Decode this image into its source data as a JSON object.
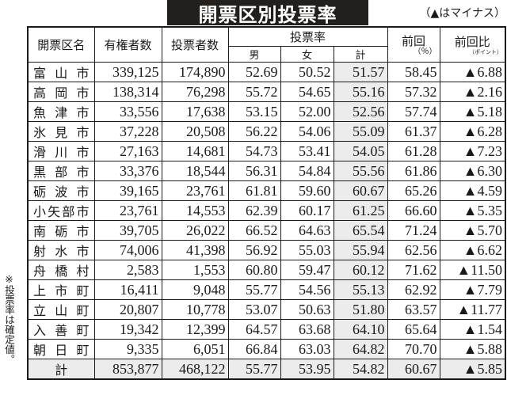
{
  "title": "開票区別投票率",
  "note": "（▲はマイナス）",
  "side_note": "※投票率は確定値。",
  "headers": {
    "district": "開票区名",
    "registered": "有権者数",
    "voters": "投票者数",
    "turnout": "投票率",
    "male": "男",
    "female": "女",
    "total": "計",
    "previous": "前回",
    "previous_unit": "（％）",
    "change": "前回比",
    "change_unit": "（ポイント）"
  },
  "rows": [
    [
      "富山市",
      "339,125",
      "174,890",
      "52.69",
      "50.52",
      "51.57",
      "58.45",
      "▲6.88"
    ],
    [
      "高岡市",
      "138,314",
      "76,298",
      "55.72",
      "54.65",
      "55.16",
      "57.32",
      "▲2.16"
    ],
    [
      "魚津市",
      "33,556",
      "17,638",
      "53.15",
      "52.00",
      "52.56",
      "57.74",
      "▲5.18"
    ],
    [
      "氷見市",
      "37,228",
      "20,508",
      "56.22",
      "54.06",
      "55.09",
      "61.37",
      "▲6.28"
    ],
    [
      "滑川市",
      "27,163",
      "14,681",
      "54.73",
      "53.41",
      "54.05",
      "61.28",
      "▲7.23"
    ],
    [
      "黒部市",
      "33,376",
      "18,544",
      "56.31",
      "54.84",
      "55.56",
      "61.86",
      "▲6.30"
    ],
    [
      "砺波市",
      "39,165",
      "23,761",
      "61.81",
      "59.60",
      "60.67",
      "65.26",
      "▲4.59"
    ],
    [
      "小矢部市",
      "23,761",
      "14,553",
      "62.39",
      "60.17",
      "61.25",
      "66.60",
      "▲5.35"
    ],
    [
      "南砺市",
      "39,705",
      "26,022",
      "66.52",
      "64.63",
      "65.54",
      "71.24",
      "▲5.70"
    ],
    [
      "射水市",
      "74,006",
      "41,398",
      "56.92",
      "55.03",
      "55.94",
      "62.56",
      "▲6.62"
    ],
    [
      "舟橋村",
      "2,583",
      "1,553",
      "60.80",
      "59.47",
      "60.12",
      "71.62",
      "▲11.50"
    ],
    [
      "上市町",
      "16,411",
      "9,048",
      "55.77",
      "54.56",
      "55.13",
      "62.92",
      "▲7.79"
    ],
    [
      "立山町",
      "20,807",
      "10,778",
      "53.07",
      "50.63",
      "51.80",
      "63.57",
      "▲11.77"
    ],
    [
      "入善町",
      "19,342",
      "12,399",
      "64.57",
      "63.68",
      "64.10",
      "65.64",
      "▲1.54"
    ],
    [
      "朝日町",
      "9,335",
      "6,051",
      "66.84",
      "63.03",
      "64.82",
      "70.70",
      "▲5.88"
    ]
  ],
  "total": [
    "計",
    "853,877",
    "468,122",
    "55.77",
    "53.95",
    "54.82",
    "60.67",
    "▲5.85"
  ]
}
